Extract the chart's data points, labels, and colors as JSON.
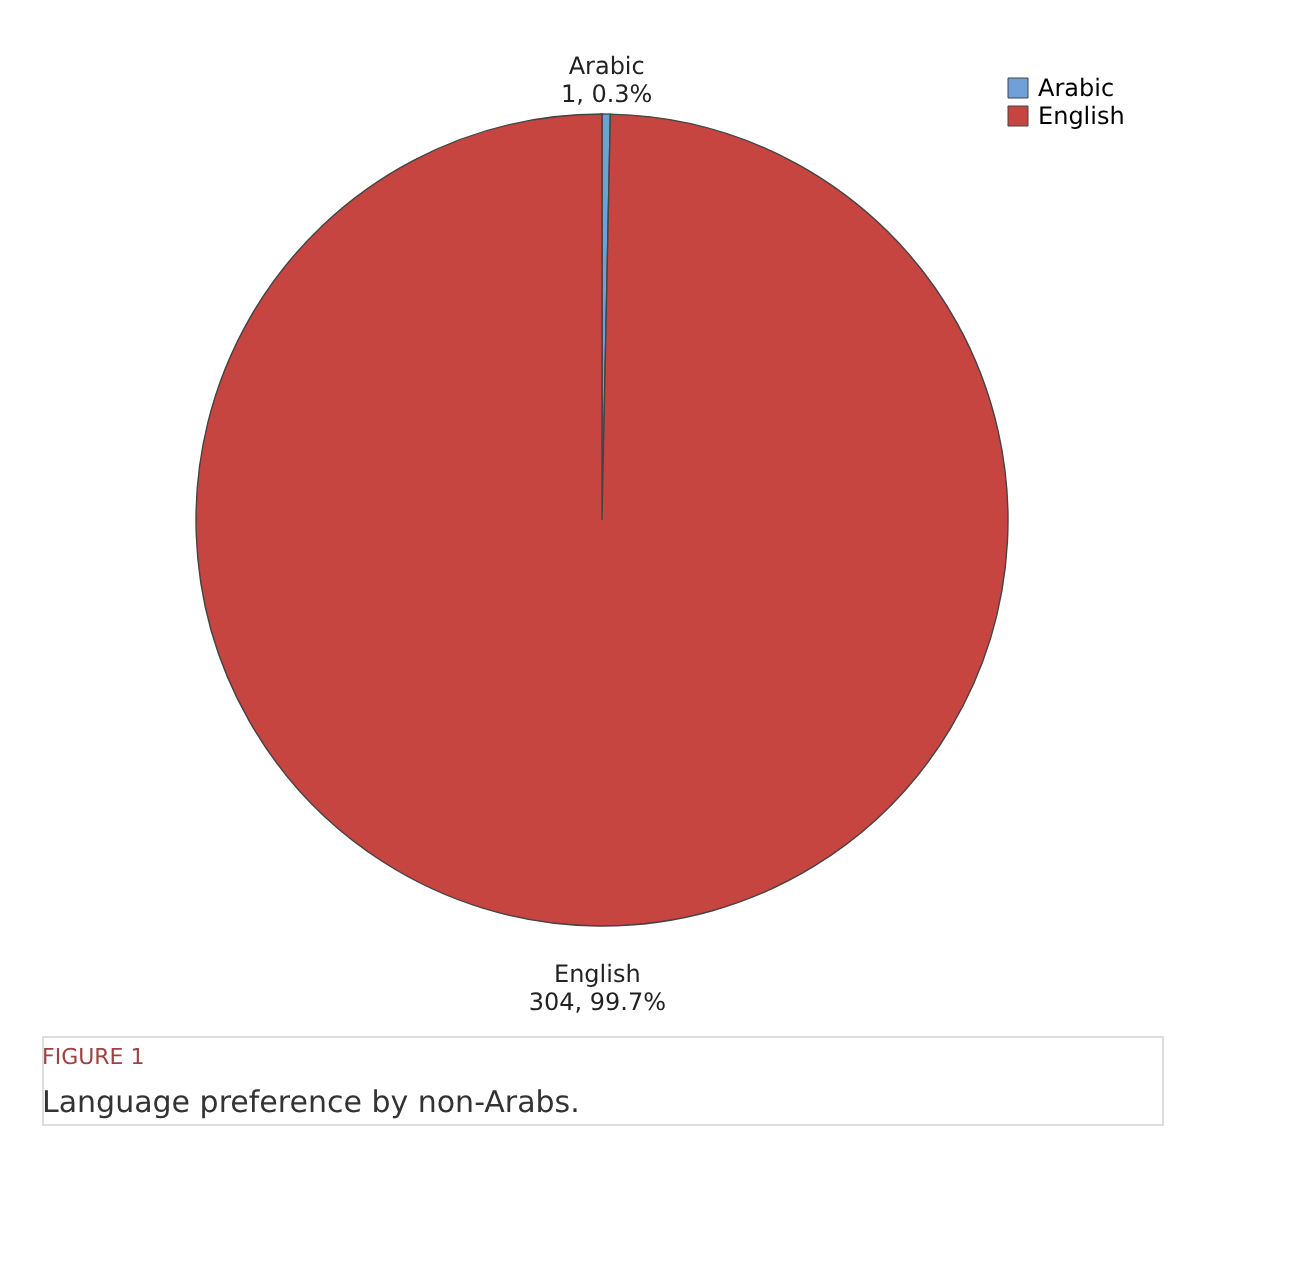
{
  "chart_data": {
    "type": "pie",
    "categories": [
      "Arabic",
      "English"
    ],
    "values": [
      1,
      304
    ],
    "colors": [
      "#6fa0d8",
      "#c64541"
    ],
    "value_labels": [
      "1, 0.3%",
      "304, 99.7%"
    ],
    "legend": "top right",
    "annotations": [
      "FIGURE 1",
      "Language preference by non-Arabs."
    ]
  }
}
